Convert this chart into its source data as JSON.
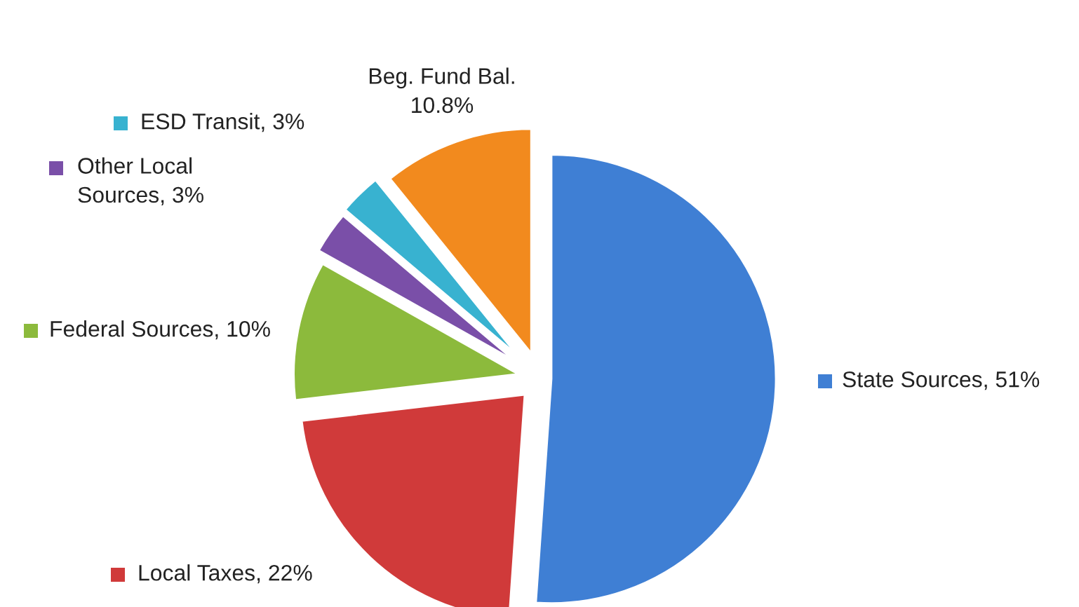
{
  "chart_data": {
    "type": "pie",
    "categories": [
      "State Sources",
      "Local Taxes",
      "Federal Sources",
      "Other Local\nSources",
      "ESD Transit",
      "Beg. Fund Bal."
    ],
    "values": [
      51,
      22,
      10,
      3,
      3,
      10.8
    ],
    "value_labels": [
      "51%",
      "22%",
      "10%",
      "3%",
      "3%",
      "10.8%"
    ],
    "legend": "left",
    "colors": [
      "#3f7fd4",
      "#d03a3a",
      "#8cba3c",
      "#7a4fa8",
      "#38b2d0",
      "#f28a1e"
    ]
  }
}
